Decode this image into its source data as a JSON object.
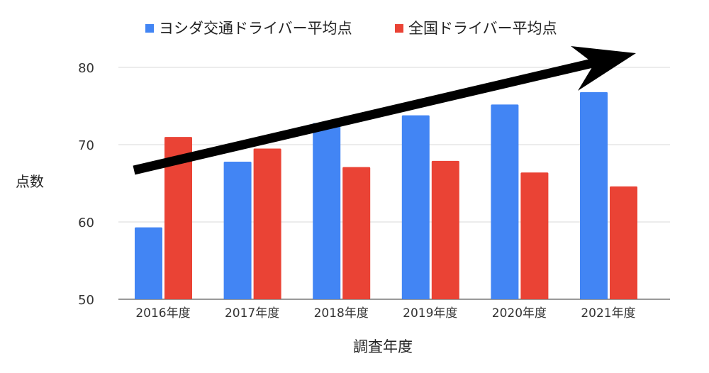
{
  "chart_data": {
    "type": "bar",
    "categories": [
      "2016年度",
      "2017年度",
      "2018年度",
      "2019年度",
      "2020年度",
      "2021年度"
    ],
    "series": [
      {
        "name": "ヨシダ交通ドライバー平均点",
        "color": "#4285f4",
        "values": [
          59.3,
          67.8,
          72.8,
          73.8,
          75.2,
          76.8
        ]
      },
      {
        "name": "全国ドライバー平均点",
        "color": "#ea4335",
        "values": [
          71.0,
          69.5,
          67.1,
          67.9,
          66.4,
          64.6
        ]
      }
    ],
    "xlabel": "調査年度",
    "ylabel": "点数",
    "ylim": [
      50,
      82
    ],
    "yticks": [
      50,
      60,
      70,
      80
    ],
    "grid": true,
    "legend": "top",
    "annotation": {
      "type": "arrow",
      "meaning": "upward trend",
      "color": "#000000"
    }
  }
}
